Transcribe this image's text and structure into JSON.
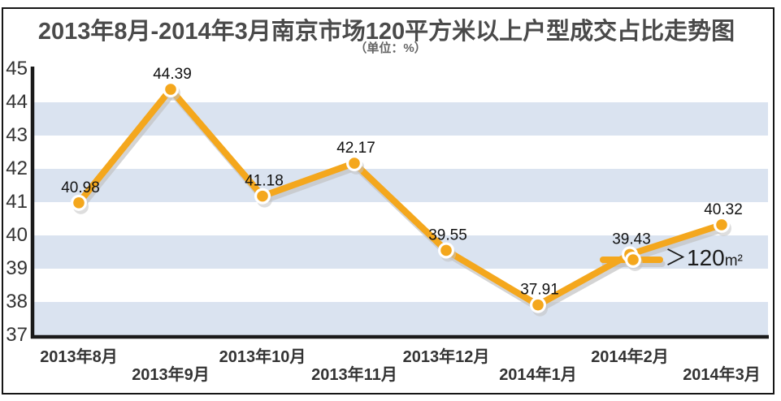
{
  "title": "2013年8月-2014年3月南京市场120平方米以上户型成交占比走势图",
  "subtitle": "（单位：%）",
  "legend": {
    "symbol": "＞",
    "main": "120",
    "unit": "m²"
  },
  "colors": {
    "line": "#F4A71D",
    "band": "#DAE3F0",
    "shadow": "#C2C2C2",
    "axis": "#1A1A1A"
  },
  "chart_data": {
    "type": "line",
    "title": "2013年8月-2014年3月南京市场120平方米以上户型成交占比走势图",
    "unit_label": "（单位：%）",
    "categories": [
      "2013年8月",
      "2013年9月",
      "2013年10月",
      "2013年11月",
      "2013年12月",
      "2014年1月",
      "2014年2月",
      "2014年3月"
    ],
    "series": [
      {
        "name": "＞120m²",
        "values": [
          40.98,
          44.39,
          41.18,
          42.17,
          39.55,
          37.91,
          39.43,
          40.32
        ]
      }
    ],
    "value_labels": [
      "40.98",
      "44.39",
      "41.18",
      "42.17",
      "39.55",
      "37.91",
      "39.43",
      "40.32"
    ],
    "ylim": [
      37,
      45
    ],
    "yticks": [
      45,
      44,
      43,
      42,
      41,
      40,
      39,
      38,
      37
    ],
    "grid": "alternating horizontal bands (blue between 43-44, 41-42, 39-40, 37-38)",
    "band_upper_edges": [
      44,
      42,
      40,
      38
    ],
    "legend_position": "inline, right of 2014年2月 data point"
  }
}
